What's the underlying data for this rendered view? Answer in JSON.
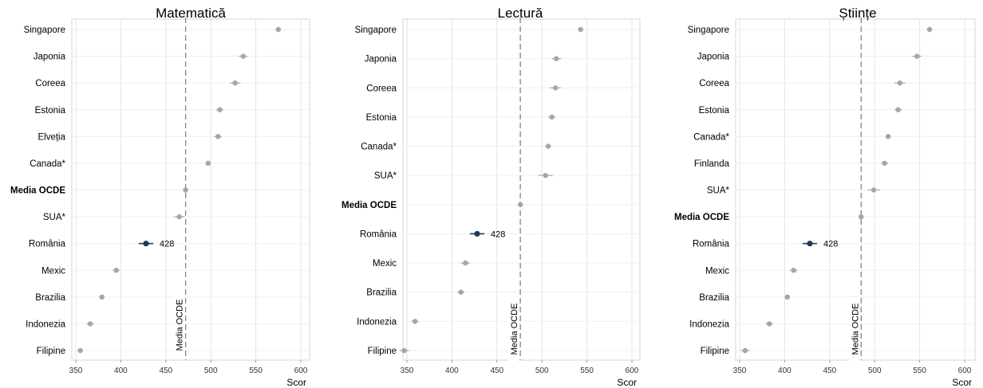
{
  "colors": {
    "point": "#a6a6a6",
    "highlight": "#1f3b5c",
    "ref_line": "#7a8797",
    "grid": "#e3e3e3"
  },
  "chart_data": [
    {
      "type": "scatter",
      "title": "Matematică",
      "xlabel": "Scor",
      "xlim": [
        330,
        610
      ],
      "xticks": [
        350,
        400,
        450,
        500,
        550,
        600
      ],
      "grid": true,
      "reference": {
        "label": "Media OCDE",
        "value": 472
      },
      "categories": [
        "Singapore",
        "Japonia",
        "Coreea",
        "Estonia",
        "Elveția",
        "Canada*",
        "Media OCDE",
        "SUA*",
        "România",
        "Mexic",
        "Brazilia",
        "Indonezia",
        "Filipine"
      ],
      "values": [
        575,
        536,
        527,
        510,
        508,
        497,
        472,
        465,
        428,
        395,
        379,
        366,
        355
      ],
      "errors": [
        3,
        5,
        6,
        4,
        4,
        3,
        1,
        6,
        8,
        4,
        3,
        4,
        3
      ],
      "highlight": "România",
      "highlight_label": "428",
      "bold": [
        "Media OCDE"
      ]
    },
    {
      "type": "scatter",
      "title": "Lectură",
      "xlabel": "Scor",
      "xlim": [
        330,
        610
      ],
      "xticks": [
        350,
        400,
        450,
        500,
        550,
        600
      ],
      "grid": true,
      "reference": {
        "label": "Media OCDE",
        "value": 476
      },
      "categories": [
        "Singapore",
        "Japonia",
        "Coreea",
        "Estonia",
        "Canada*",
        "SUA*",
        "Media OCDE",
        "România",
        "Mexic",
        "Brazilia",
        "Indonezia",
        "Filipine"
      ],
      "values": [
        543,
        516,
        515,
        511,
        507,
        504,
        476,
        428,
        415,
        410,
        359,
        347
      ],
      "errors": [
        3,
        5,
        6,
        4,
        3,
        8,
        1,
        8,
        5,
        4,
        4,
        5
      ],
      "highlight": "România",
      "highlight_label": "428",
      "bold": [
        "Media OCDE"
      ]
    },
    {
      "type": "scatter",
      "title": "Științe",
      "xlabel": "Scor",
      "xlim": [
        330,
        610
      ],
      "xticks": [
        350,
        400,
        450,
        500,
        550,
        600
      ],
      "grid": true,
      "reference": {
        "label": "Media OCDE",
        "value": 485
      },
      "categories": [
        "Singapore",
        "Japonia",
        "Coreea",
        "Estonia",
        "Canada*",
        "Finlanda",
        "SUA*",
        "Media OCDE",
        "România",
        "Mexic",
        "Brazilia",
        "Indonezia",
        "Filipine"
      ],
      "values": [
        561,
        547,
        528,
        526,
        515,
        511,
        499,
        485,
        428,
        410,
        403,
        383,
        356
      ],
      "errors": [
        3,
        5,
        6,
        4,
        3,
        4,
        7,
        1,
        8,
        4,
        3,
        4,
        5
      ],
      "highlight": "România",
      "highlight_label": "428",
      "bold": [
        "Media OCDE"
      ]
    }
  ]
}
